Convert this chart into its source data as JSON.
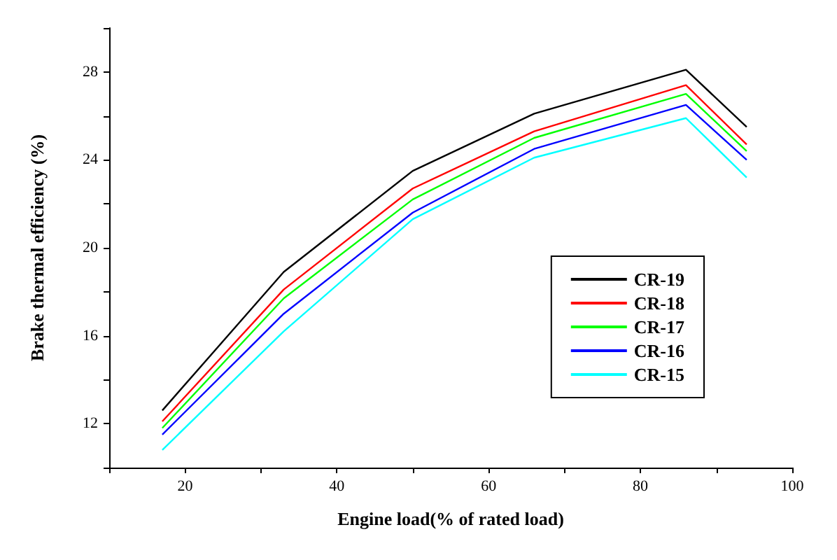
{
  "chart_data": {
    "type": "line",
    "xlabel": "Engine load(% of rated load)",
    "ylabel": "Brake thermal efficiency (%)",
    "x": [
      17,
      33,
      50,
      66,
      86,
      94
    ],
    "series": [
      {
        "name": "CR-19",
        "color": "#000000",
        "values": [
          12.6,
          18.9,
          23.5,
          26.1,
          28.1,
          25.5
        ]
      },
      {
        "name": "CR-18",
        "color": "#ff0000",
        "values": [
          12.1,
          18.1,
          22.7,
          25.3,
          27.4,
          24.7
        ]
      },
      {
        "name": "CR-17",
        "color": "#00ff00",
        "values": [
          11.8,
          17.7,
          22.2,
          25.0,
          27.0,
          24.4
        ]
      },
      {
        "name": "CR-16",
        "color": "#0000ff",
        "values": [
          11.5,
          17.0,
          21.6,
          24.5,
          26.5,
          24.0
        ]
      },
      {
        "name": "CR-15",
        "color": "#00ffff",
        "values": [
          10.8,
          16.2,
          21.3,
          24.1,
          25.9,
          23.2
        ]
      }
    ],
    "xlim": [
      10,
      100
    ],
    "xticks": [
      20,
      40,
      60,
      80,
      100
    ],
    "ylim": [
      10,
      30
    ],
    "yticks": [
      12,
      16,
      20,
      24,
      28
    ],
    "grid": false,
    "legend": "right",
    "marker": "none",
    "line_style": "solid"
  }
}
